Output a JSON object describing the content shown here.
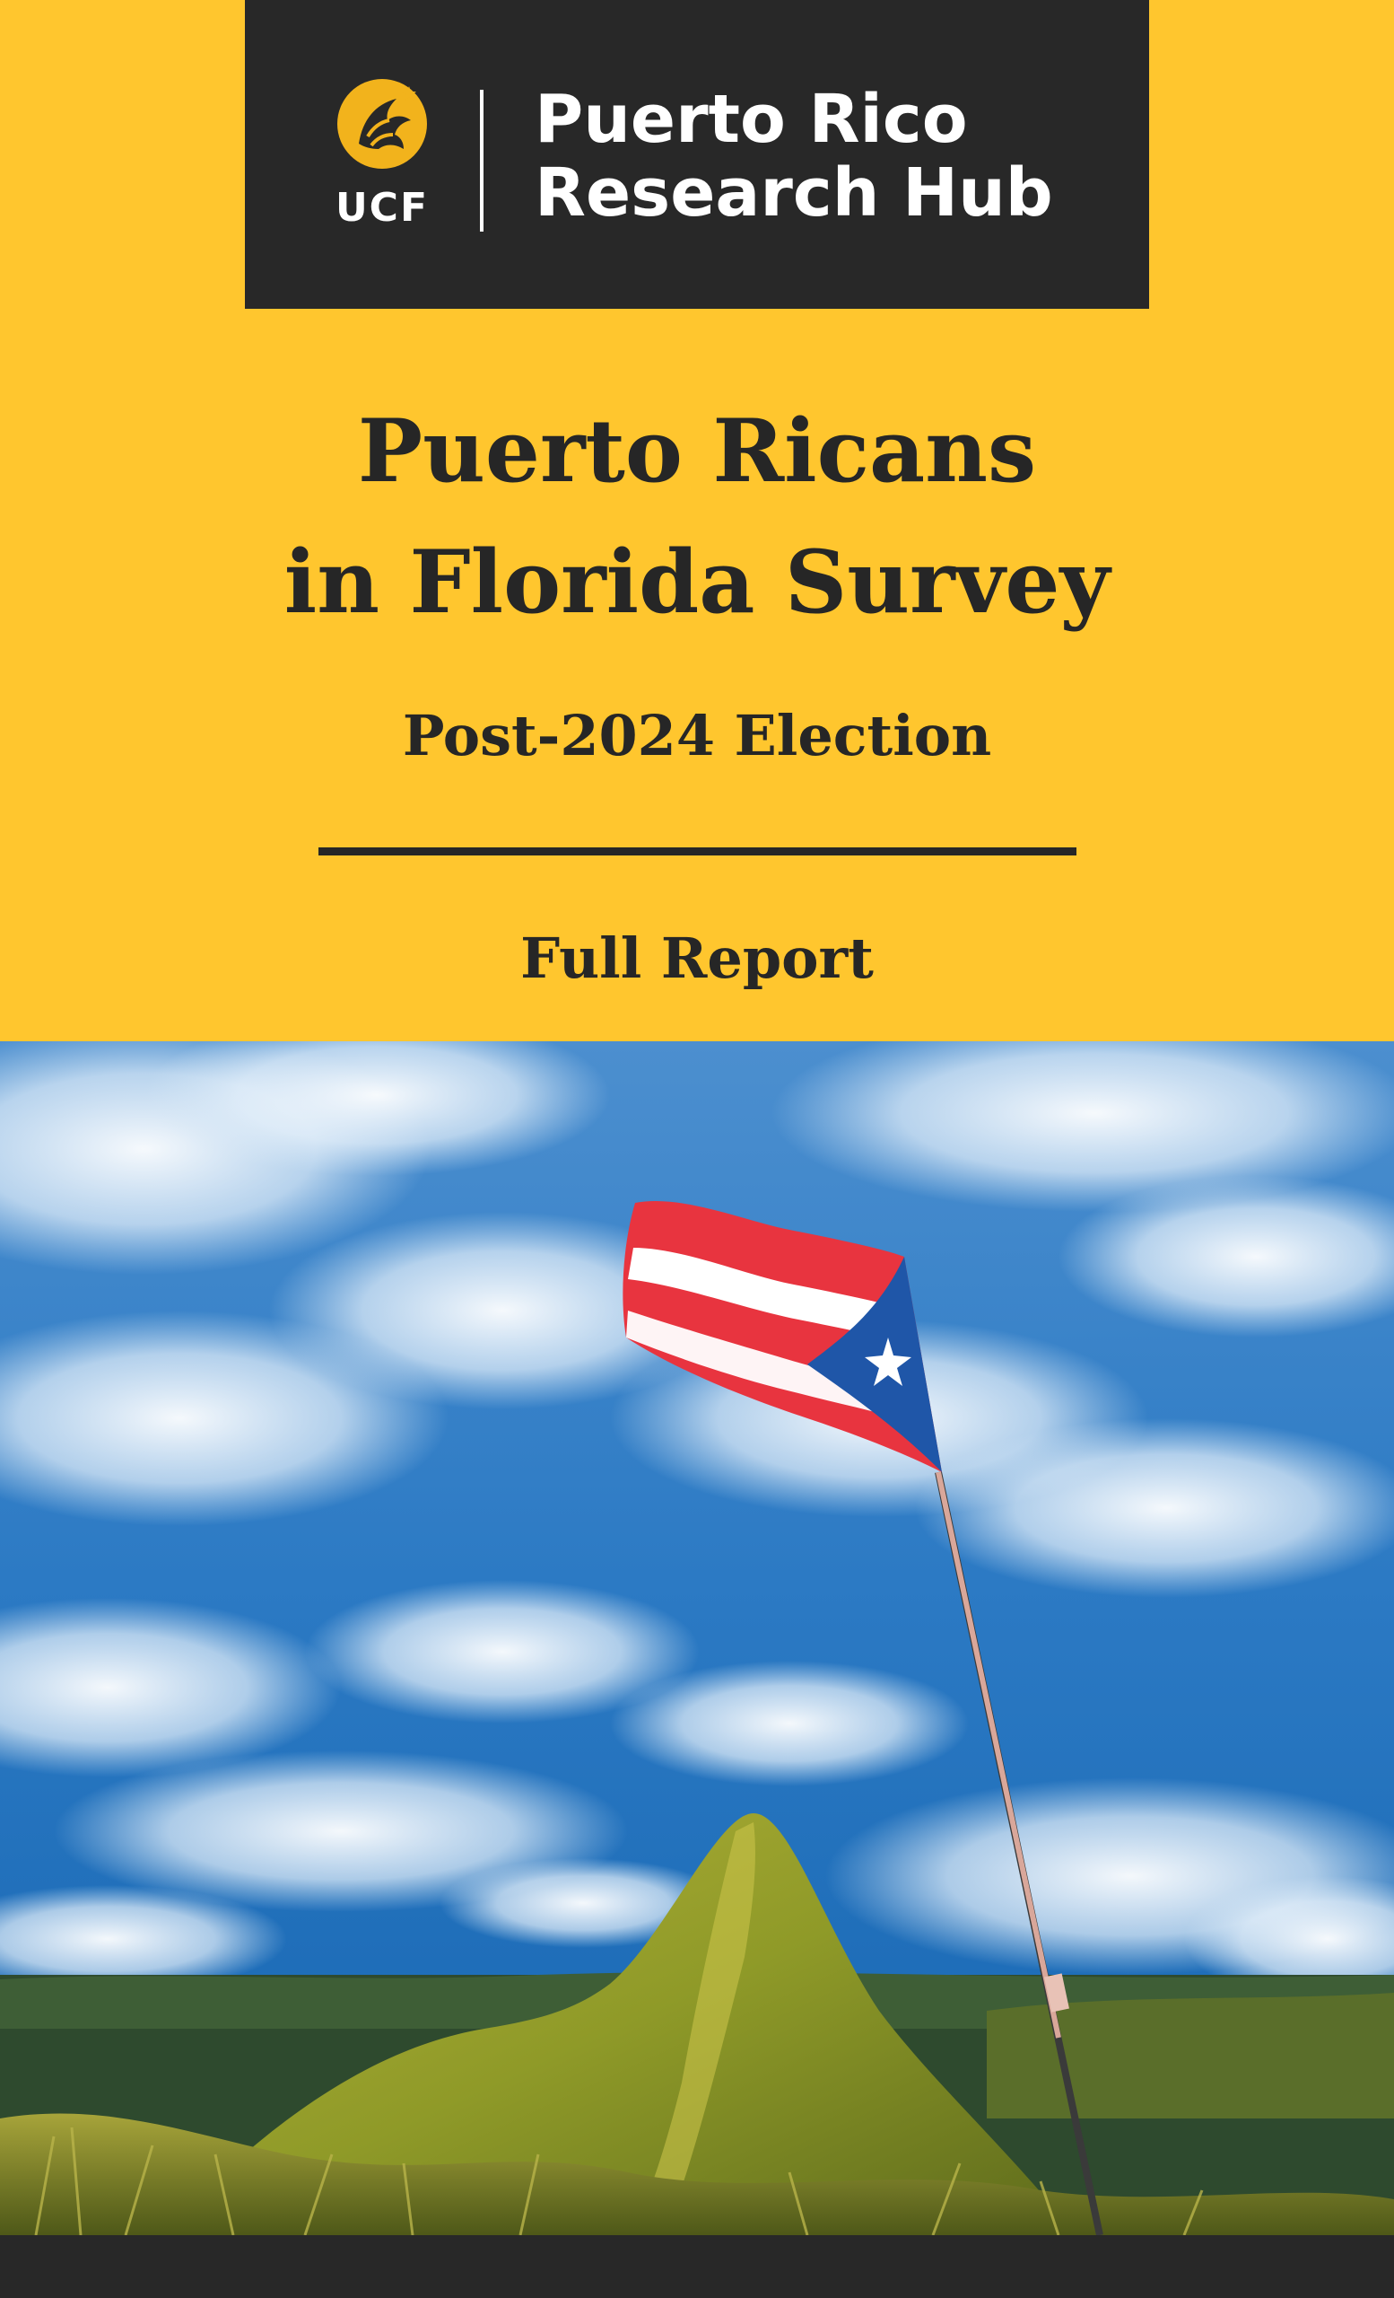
{
  "logo": {
    "university": "UCF",
    "hub_line_1": "Puerto Rico",
    "hub_line_2": "Research Hub",
    "mark_icon": "pegasus-icon",
    "bar_color": "#282828",
    "gold_color": "#FFC62E"
  },
  "cover": {
    "title_line_1": "Puerto Ricans",
    "title_line_2": "in Florida Survey",
    "subtitle": "Post-2024 Election",
    "report_label": "Full Report"
  },
  "photo": {
    "subject": "puerto-rico-flag-on-mountain-photo",
    "flag_icon": "puerto-rico-flag-icon"
  }
}
